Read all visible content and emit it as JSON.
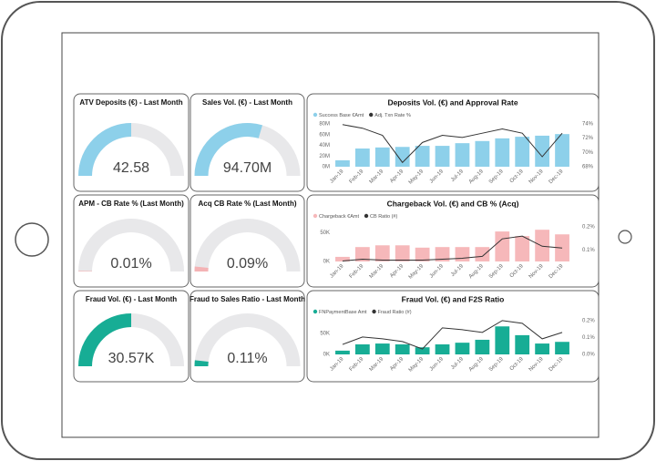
{
  "chart_data": [
    {
      "type": "gauge",
      "title": "ATV Deposits (€) - Last Month",
      "value": 42.58,
      "ylim": [
        0,
        85.16
      ],
      "color": "#8dd0ea"
    },
    {
      "type": "gauge",
      "title": "Sales Vol. (€) - Last Month",
      "value": 94700000,
      "value_label": "94.70M",
      "ylim": [
        0,
        160000000
      ],
      "color": "#8dd0ea"
    },
    {
      "type": "gauge",
      "title": "APM - CB Rate % (Last Month)",
      "value": 0.01,
      "value_label": "0.01%",
      "ylim": [
        0,
        3
      ],
      "color": "#f4b3b5"
    },
    {
      "type": "gauge",
      "title": "Acq CB Rate % (Last Month)",
      "value": 0.09,
      "value_label": "0.09%",
      "ylim": [
        0,
        3
      ],
      "color": "#f4b3b5"
    },
    {
      "type": "gauge",
      "title": "Fraud Vol. (€) - Last Month",
      "value": 30570,
      "value_label": "30.57K",
      "ylim": [
        0,
        61140
      ],
      "color": "#17ad95"
    },
    {
      "type": "gauge",
      "title": "Fraud to Sales Ratio - Last Month",
      "value": 0.11,
      "value_label": "0.11%",
      "ylim": [
        0,
        3
      ],
      "color": "#17ad95"
    },
    {
      "type": "combo",
      "title": "Deposits Vol. (€) and Approval Rate",
      "categories": [
        "Jan-19",
        "Feb-19",
        "Mar-19",
        "Apr-19",
        "May-19",
        "Jun-19",
        "Jul-19",
        "Aug-19",
        "Sep-19",
        "Oct-19",
        "Nov-19",
        "Dec-19"
      ],
      "series": [
        {
          "name": "Success Base €Amt",
          "color": "#8dd0ea",
          "values": [
            12000000,
            34000000,
            36000000,
            37000000,
            39000000,
            39000000,
            44000000,
            48000000,
            53000000,
            56000000,
            58000000,
            61000000
          ]
        },
        {
          "name": "Adj. Txn Rate %",
          "color": "#333333",
          "axis": "y2",
          "values": [
            73.9,
            73.4,
            72.4,
            68.6,
            71.4,
            72.4,
            72.1,
            72.7,
            73.3,
            72.7,
            69.4,
            72.7
          ]
        }
      ],
      "ylim": [
        0,
        80000000
      ],
      "yticks": [
        {
          "value": 0,
          "label": "0M"
        },
        {
          "value": 20000000,
          "label": "20M"
        },
        {
          "value": 40000000,
          "label": "40M"
        },
        {
          "value": 60000000,
          "label": "60M"
        },
        {
          "value": 80000000,
          "label": "80M"
        }
      ],
      "y2lim": [
        68,
        74
      ],
      "y2ticks": [
        {
          "value": 68,
          "label": "68%"
        },
        {
          "value": 70,
          "label": "70%"
        },
        {
          "value": 72,
          "label": "72%"
        },
        {
          "value": 74,
          "label": "74%"
        }
      ]
    },
    {
      "type": "combo",
      "title": "Chargeback Vol. (€) and CB % (Acq)",
      "categories": [
        "Jan-19",
        "Feb-19",
        "Mar-19",
        "Apr-19",
        "May-19",
        "Jun-19",
        "Jul-19",
        "Aug-19",
        "Sep-19",
        "Oct-19",
        "Nov-19",
        "Dec-19"
      ],
      "series": [
        {
          "name": "Chargeback €Amt",
          "color": "#f6b8ba",
          "values": [
            8000,
            25000,
            28000,
            28000,
            24000,
            25000,
            25000,
            25000,
            52000,
            44000,
            55000,
            47000
          ]
        },
        {
          "name": "CB Ratio (#)",
          "color": "#333333",
          "axis": "y2",
          "values": [
            0.052,
            0.06,
            0.056,
            0.056,
            0.056,
            0.06,
            0.064,
            0.072,
            0.148,
            0.16,
            0.116,
            0.108
          ]
        }
      ],
      "ylim": [
        0,
        60000
      ],
      "yticks": [
        {
          "value": 0,
          "label": "0K"
        },
        {
          "value": 50000,
          "label": "50K"
        }
      ],
      "y2lim": [
        0.05,
        0.2
      ],
      "y2ticks": [
        {
          "value": 0.1,
          "label": "0.1%"
        },
        {
          "value": 0.2,
          "label": "0.2%"
        }
      ]
    },
    {
      "type": "combo",
      "title": "Fraud Vol. (€) and F2S Ratio",
      "categories": [
        "Jan-19",
        "Feb-19",
        "Mar-19",
        "Apr-19",
        "May-19",
        "Jun-19",
        "Jul-19",
        "Aug-19",
        "Sep-19",
        "Oct-19",
        "Nov-19",
        "Dec-19"
      ],
      "series": [
        {
          "name": "FNPaymentBase Amt",
          "color": "#17ad95",
          "values": [
            9000,
            24000,
            26000,
            24000,
            17000,
            24000,
            28000,
            35000,
            67000,
            46000,
            26000,
            30000
          ]
        },
        {
          "name": "Fraud Ratio (#)",
          "color": "#333333",
          "axis": "y2",
          "values": [
            0.059,
            0.103,
            0.092,
            0.076,
            0.032,
            0.157,
            0.146,
            0.13,
            0.2,
            0.184,
            0.092,
            0.13
          ]
        }
      ],
      "ylim": [
        0,
        85000
      ],
      "yticks": [
        {
          "value": 0,
          "label": "0K"
        },
        {
          "value": 50000,
          "label": "50K"
        }
      ],
      "y2lim": [
        0,
        0.21
      ],
      "y2ticks": [
        {
          "value": 0,
          "label": "0.0%"
        },
        {
          "value": 0.1,
          "label": "0.1%"
        },
        {
          "value": 0.2,
          "label": "0.2%"
        }
      ]
    }
  ]
}
